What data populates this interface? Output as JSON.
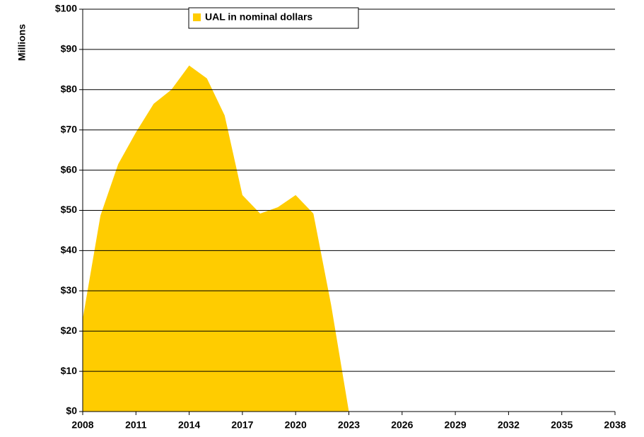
{
  "chart_data": {
    "type": "area",
    "y_label": "Millions",
    "x": [
      2008,
      2009,
      2010,
      2011,
      2012,
      2013,
      2014,
      2015,
      2016,
      2017,
      2018,
      2019,
      2020,
      2021,
      2022,
      2023,
      2024,
      2025,
      2026,
      2027,
      2028,
      2029,
      2030,
      2031,
      2032,
      2033,
      2034,
      2035,
      2036,
      2037,
      2038
    ],
    "series": [
      {
        "name": "UAL in nominal dollars",
        "color": "#ffcc00",
        "values": [
          23,
          48.7,
          61.5,
          69.4,
          76.5,
          80,
          86,
          82.8,
          73.6,
          53.8,
          49.2,
          50.8,
          53.8,
          49.2,
          26.5,
          0,
          0,
          0,
          0,
          0,
          0,
          0,
          0,
          0,
          0,
          0,
          0,
          0,
          0,
          0,
          0
        ]
      }
    ],
    "xlim": [
      2008,
      2038
    ],
    "xticks": [
      2008,
      2011,
      2014,
      2017,
      2020,
      2023,
      2026,
      2029,
      2032,
      2035,
      2038
    ],
    "ylim": [
      0,
      100
    ],
    "yticks": [
      {
        "value": 0,
        "label": "$0"
      },
      {
        "value": 10,
        "label": "$10"
      },
      {
        "value": 20,
        "label": "$20"
      },
      {
        "value": 30,
        "label": "$30"
      },
      {
        "value": 40,
        "label": "$40"
      },
      {
        "value": 50,
        "label": "$50"
      },
      {
        "value": 60,
        "label": "$60"
      },
      {
        "value": 70,
        "label": "$70"
      },
      {
        "value": 80,
        "label": "$80"
      },
      {
        "value": 90,
        "label": "$90"
      },
      {
        "value": 100,
        "label": "$100"
      }
    ],
    "grid": true,
    "legend": "top"
  }
}
